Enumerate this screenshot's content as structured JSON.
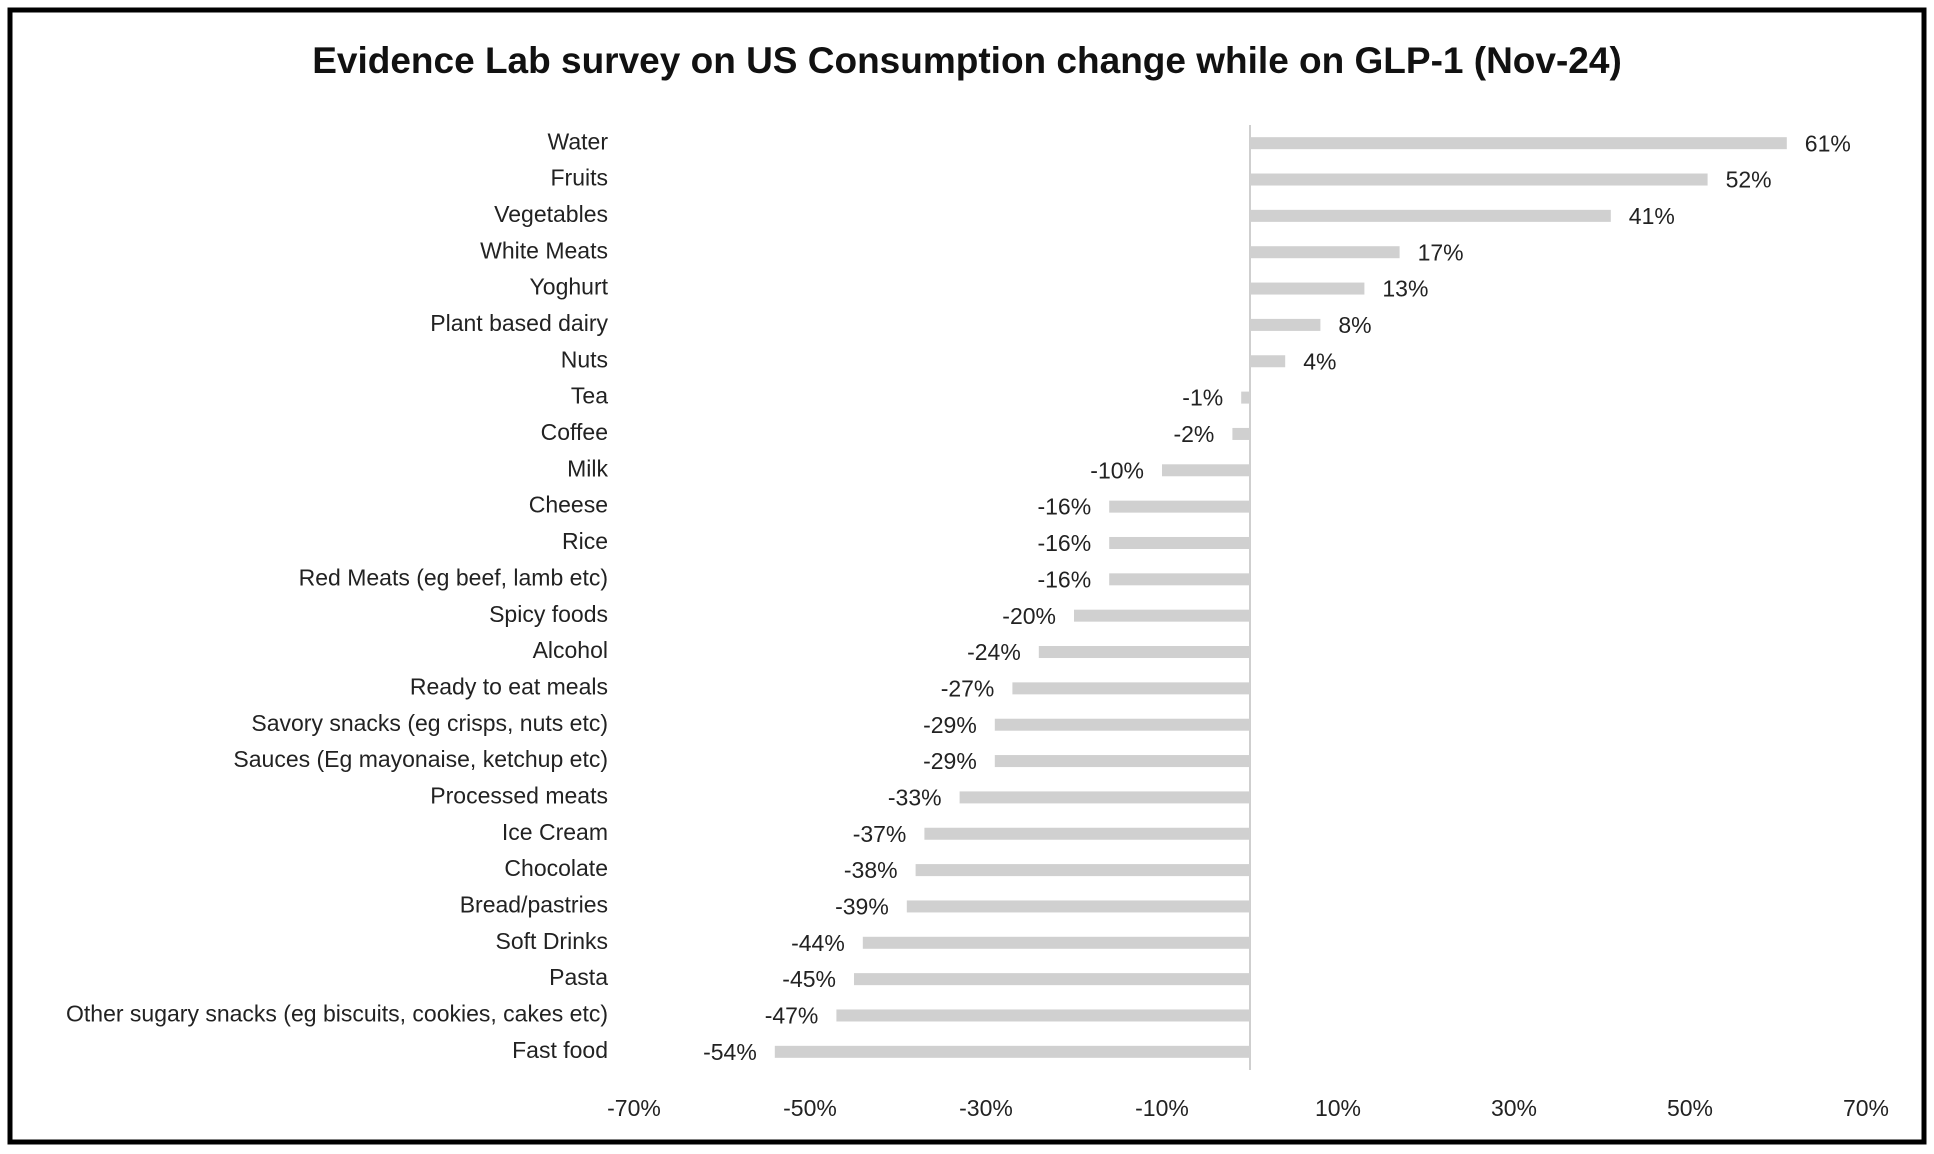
{
  "chart_data": {
    "type": "bar",
    "orientation": "horizontal",
    "title": "Evidence Lab survey on US Consumption change while on GLP-1 (Nov-24)",
    "categories": [
      "Water",
      "Fruits",
      "Vegetables",
      "White Meats",
      "Yoghurt",
      "Plant based dairy",
      "Nuts",
      "Tea",
      "Coffee",
      "Milk",
      "Cheese",
      "Rice",
      "Red Meats (eg beef, lamb etc)",
      "Spicy foods",
      "Alcohol",
      "Ready to eat meals",
      "Savory snacks (eg crisps, nuts etc)",
      "Sauces (Eg mayonaise, ketchup etc)",
      "Processed meats",
      "Ice Cream",
      "Chocolate",
      "Bread/pastries",
      "Soft Drinks",
      "Pasta",
      "Other sugary snacks (eg biscuits, cookies, cakes etc)",
      "Fast food"
    ],
    "values": [
      61,
      52,
      41,
      17,
      13,
      8,
      4,
      -1,
      -2,
      -10,
      -16,
      -16,
      -16,
      -20,
      -24,
      -27,
      -29,
      -29,
      -33,
      -37,
      -38,
      -39,
      -44,
      -45,
      -47,
      -54
    ],
    "value_labels": [
      "61%",
      "52%",
      "41%",
      "17%",
      "13%",
      "8%",
      "4%",
      "-1%",
      "-2%",
      "-10%",
      "-16%",
      "-16%",
      "-16%",
      "-20%",
      "-24%",
      "-27%",
      "-29%",
      "-29%",
      "-33%",
      "-37%",
      "-38%",
      "-39%",
      "-44%",
      "-45%",
      "-47%",
      "-54%"
    ],
    "color": "#d0d0d0",
    "xlim": [
      -70,
      70
    ],
    "xticks": [
      {
        "value": -70,
        "label": "-70%"
      },
      {
        "value": -50,
        "label": "-50%"
      },
      {
        "value": -30,
        "label": "-30%"
      },
      {
        "value": -10,
        "label": "-10%"
      },
      {
        "value": 10,
        "label": "10%"
      },
      {
        "value": 30,
        "label": "30%"
      },
      {
        "value": 50,
        "label": "50%"
      },
      {
        "value": 70,
        "label": "70%"
      }
    ],
    "grid": false
  }
}
